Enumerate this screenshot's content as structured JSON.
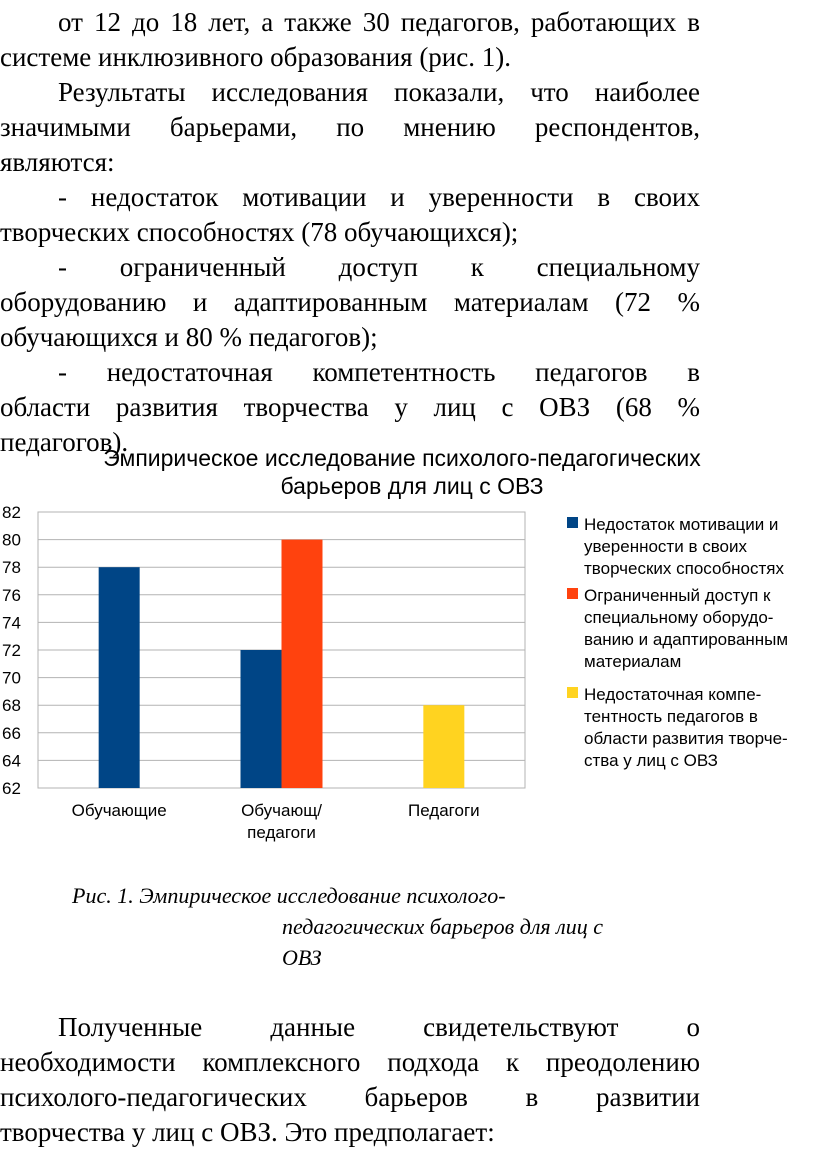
{
  "text_top": {
    "p1_lines": [
      "от 12 до 18 лет, а также 30 педагогов, работающих в",
      "системе инклюзивного образования (рис. 1)."
    ],
    "p2_lines": [
      "Результаты исследования показали, что наиболее",
      "значимыми барьерами, по мнению респондентов,",
      "являются:"
    ],
    "bullet1_lines": [
      "- недостаток мотивации и уверенности в своих",
      "творческих способностях (78 обучающихся);"
    ],
    "bullet2_lines": [
      "- ограниченный доступ к специальному",
      "оборудованию и адаптированным материалам (72 %",
      "обучающихся и 80 % педагогов);"
    ],
    "bullet3_lines": [
      "- недостаточная компетентность педагогов в",
      "области развития творчества у лиц с ОВЗ (68 %",
      "педагогов)."
    ]
  },
  "chart_data": {
    "type": "bar",
    "title_lines": [
      "Эмпирическое исследование психолого-педагогических",
      "барьеров для лиц с ОВЗ"
    ],
    "categories": [
      "Обучающие",
      "Обучающ/ педагоги",
      "Педагоги"
    ],
    "category_lines": [
      [
        "Обучающие"
      ],
      [
        "Обучающ/",
        "педагоги"
      ],
      [
        "Педагоги"
      ]
    ],
    "series": [
      {
        "name": "Недостаток мотивации и уверенности в своих творческих способностях",
        "legend_lines": [
          "Недостаток мотивации и",
          "уверенности в своих",
          "творческих способностях"
        ],
        "color": "#004586",
        "values": [
          78,
          72,
          null
        ]
      },
      {
        "name": "Ограниченный доступ к специальному оборудованию и адаптированным материалам",
        "legend_lines": [
          "Ограниченный доступ к",
          "специальному оборудо-",
          "ванию и адаптированным",
          "материалам"
        ],
        "color": "#ff420e",
        "values": [
          null,
          80,
          null
        ]
      },
      {
        "name": "Недостаточная компетентность педагогов в области развития творчества у лиц с ОВЗ",
        "legend_lines": [
          "Недостаточная компе-",
          "тентность педагогов в",
          "области развития творче-",
          "ства у лиц с ОВЗ"
        ],
        "color": "#ffd320",
        "values": [
          null,
          null,
          68
        ]
      }
    ],
    "ylim": [
      62,
      82
    ],
    "yticks": [
      62,
      64,
      66,
      68,
      70,
      72,
      74,
      76,
      78,
      80,
      82
    ],
    "grid": true,
    "legend": "right"
  },
  "caption_lines": [
    "Рис. 1. Эмпирическое исследование психолого-",
    "педагогических  барьеров для лиц с",
    "ОВЗ"
  ],
  "text_bottom": {
    "p_lines": [
      "Полученные данные свидетельствуют о",
      "необходимости комплексного подхода к преодолению",
      "психолого-педагогических барьеров в развитии",
      "творчества у лиц с ОВЗ. Это предполагает:"
    ]
  }
}
